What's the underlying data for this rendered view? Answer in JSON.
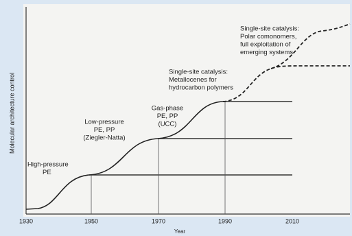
{
  "axes": {
    "y_label": "Molecular architecture control",
    "x_label": "Year",
    "x_ticks": [
      "1930",
      "1950",
      "1970",
      "1990",
      "2010"
    ]
  },
  "annotations": [
    {
      "lines": [
        "High-pressure",
        "PE"
      ]
    },
    {
      "lines": [
        "Low-pressure",
        "PE, PP",
        "(Ziegler-Natta)"
      ]
    },
    {
      "lines": [
        "Gas-phase",
        "PE, PP",
        "(UCC)"
      ]
    },
    {
      "lines": [
        "Single-site catalysis:",
        "Metallocenes for",
        "hydrocarbon polymers"
      ]
    },
    {
      "lines": [
        "Single-site catalysis:",
        "Polar comonomers,",
        "full exploitation of",
        "emerging systems"
      ]
    }
  ]
}
